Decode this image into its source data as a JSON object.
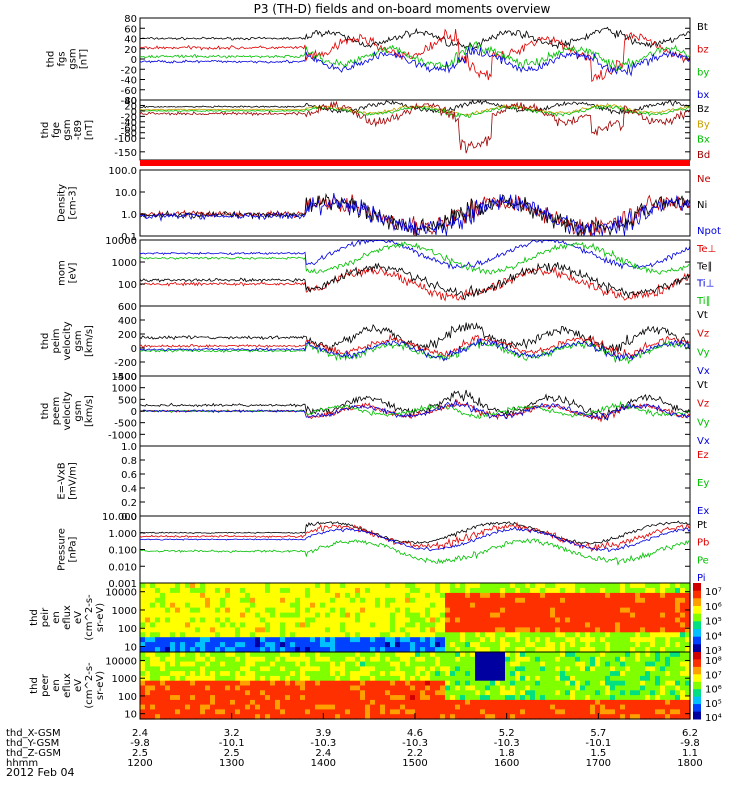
{
  "title": "P3 (TH-D) fields and on-board moments overview",
  "date_label": "2012 Feb 04",
  "chart_data": [
    {
      "id": "fgs",
      "type": "line",
      "ylabel": [
        "thd",
        "fgs",
        "gsm",
        "[nT]"
      ],
      "ylim": [
        -80,
        80
      ],
      "yticks": [
        80,
        60,
        40,
        20,
        0,
        -20,
        -40,
        -60,
        -80
      ],
      "series": [
        {
          "name": "Bt",
          "color": "#000000",
          "base": 40,
          "amp": 8
        },
        {
          "name": "bz",
          "color": "#e00000",
          "base": 22,
          "amp": 12
        },
        {
          "name": "by",
          "color": "#00c000",
          "base": 5,
          "amp": 10
        },
        {
          "name": "bx",
          "color": "#0000e0",
          "base": -5,
          "amp": 10
        }
      ]
    },
    {
      "id": "fge",
      "type": "line",
      "ylabel": [
        "thd",
        "fge",
        "gsm",
        "-t89",
        "[nT]"
      ],
      "ylim": [
        -180,
        40
      ],
      "yticks": [
        40,
        20,
        0,
        -20,
        -40,
        -60,
        -80,
        -100,
        -150
      ],
      "series": [
        {
          "name": "Bz",
          "color": "#000000",
          "base": 15,
          "amp": 10
        },
        {
          "name": "By",
          "color": "#c8a000",
          "base": 5,
          "amp": 8
        },
        {
          "name": "Bx",
          "color": "#00c000",
          "base": 0,
          "amp": 8
        },
        {
          "name": "Bd",
          "color": "#a00000",
          "base": -10,
          "amp": 20
        }
      ]
    },
    {
      "id": "density",
      "type": "line",
      "log": true,
      "ylabel": [
        "Density",
        "[cm-3]"
      ],
      "ylim": [
        0.1,
        100
      ],
      "yticks": [
        100.0,
        10.0,
        1.0,
        0.1
      ],
      "ytick_labels": [
        "100.0",
        "10.0",
        "1.0",
        "0.1"
      ],
      "series": [
        {
          "name": "Ne",
          "color": "#c00000",
          "base": 1.0,
          "amp": 1.2
        },
        {
          "name": "Ni",
          "color": "#000000",
          "base": 0.9,
          "amp": 1.2
        },
        {
          "name": "Npot",
          "color": "#0000e0",
          "base": 0.8,
          "amp": 1.2
        }
      ]
    },
    {
      "id": "temp",
      "type": "line",
      "log": true,
      "ylabel": [
        "mom",
        "[eV]"
      ],
      "ylim": [
        10,
        10000
      ],
      "yticks": [
        10000,
        1000,
        100
      ],
      "ytick_labels": [
        "10000",
        "1000",
        "100"
      ],
      "series": [
        {
          "name": "Te⊥",
          "color": "#e00000",
          "base": 100,
          "amp": 0.6
        },
        {
          "name": "Te∥",
          "color": "#000000",
          "base": 150,
          "amp": 0.6
        },
        {
          "name": "Ti⊥",
          "color": "#0000e0",
          "base": 2500,
          "amp": 0.4
        },
        {
          "name": "Ti∥",
          "color": "#00c000",
          "base": 1500,
          "amp": 0.4
        }
      ]
    },
    {
      "id": "peim",
      "type": "line",
      "ylabel": [
        "thd",
        "peim",
        "velocity",
        "gsm",
        "[km/s]"
      ],
      "ylim": [
        -400,
        600
      ],
      "yticks": [
        600,
        400,
        200,
        0,
        -200,
        -400
      ],
      "series": [
        {
          "name": "Vt",
          "color": "#000000",
          "base": 150,
          "amp": 80
        },
        {
          "name": "Vz",
          "color": "#e00000",
          "base": 30,
          "amp": 60
        },
        {
          "name": "Vy",
          "color": "#00c000",
          "base": -40,
          "amp": 60
        },
        {
          "name": "Vx",
          "color": "#0000e0",
          "base": -20,
          "amp": 60
        }
      ]
    },
    {
      "id": "peem",
      "type": "line",
      "ylabel": [
        "thd",
        "peem",
        "velocity",
        "gsm",
        "[km/s]"
      ],
      "ylim": [
        -1500,
        1500
      ],
      "yticks": [
        1500,
        1000,
        500,
        0,
        -500,
        -1000
      ],
      "series": [
        {
          "name": "Vt",
          "color": "#000000",
          "base": 250,
          "amp": 200
        },
        {
          "name": "Vz",
          "color": "#e00000",
          "base": 0,
          "amp": 150
        },
        {
          "name": "Vy",
          "color": "#00c000",
          "base": 0,
          "amp": 120
        },
        {
          "name": "Vx",
          "color": "#0000e0",
          "base": 0,
          "amp": 150
        }
      ]
    },
    {
      "id": "efield",
      "type": "line",
      "ylabel": [
        "E=-VxB",
        "[mV/m]"
      ],
      "ylim": [
        0.0,
        1.0
      ],
      "yticks": [
        1.0,
        0.8,
        0.6,
        0.4,
        0.2,
        0.0
      ],
      "ytick_labels": [
        "1.0",
        "0.8",
        "0.6",
        "0.4",
        "0.2",
        "0.0"
      ],
      "series": [
        {
          "name": "Ez",
          "color": "#e00000",
          "base": null,
          "amp": 0
        },
        {
          "name": "Ey",
          "color": "#00c000",
          "base": null,
          "amp": 0
        },
        {
          "name": "Ex",
          "color": "#0000e0",
          "base": null,
          "amp": 0
        }
      ]
    },
    {
      "id": "pressure",
      "type": "line",
      "log": true,
      "ylabel": [
        "Pressure",
        "[nPa]"
      ],
      "ylim": [
        0.001,
        10
      ],
      "yticks": [
        10.0,
        1.0,
        0.1,
        0.01,
        0.001
      ],
      "ytick_labels": [
        "10.000",
        "1.000",
        "0.100",
        "0.010",
        "0.001"
      ],
      "series": [
        {
          "name": "Pt",
          "color": "#000000",
          "base": 1.0,
          "amp": 0.3
        },
        {
          "name": "Pb",
          "color": "#e00000",
          "base": 0.6,
          "amp": 0.5
        },
        {
          "name": "Pe",
          "color": "#00c000",
          "base": 0.08,
          "amp": 0.5
        },
        {
          "name": "Pi",
          "color": "#0000e0",
          "base": 0.4,
          "amp": 0.3
        }
      ]
    },
    {
      "id": "peir",
      "type": "heatmap",
      "ylabel": [
        "thd",
        "peir",
        "en",
        "eflux",
        "eV",
        "(cm^2-s-",
        "sr-eV)"
      ],
      "ylim": [
        5,
        30000
      ],
      "yticks": [
        10000,
        1000,
        100,
        10
      ],
      "ytick_labels": [
        "10000",
        "1000",
        "100",
        "10"
      ],
      "colorbar_labels": [
        "10⁷",
        "10⁶",
        "10⁵",
        "10⁴",
        "10³"
      ]
    },
    {
      "id": "peer",
      "type": "heatmap",
      "ylabel": [
        "thd",
        "peer",
        "en",
        "eflux",
        "eV",
        "(cm^2-s-",
        "sr-eV)"
      ],
      "ylim": [
        5,
        30000
      ],
      "yticks": [
        10000,
        1000,
        100,
        10
      ],
      "ytick_labels": [
        "10000",
        "1000",
        "100",
        "10"
      ],
      "colorbar_labels": [
        "10⁸",
        "10⁷",
        "10⁶",
        "10⁵",
        "10⁴"
      ]
    }
  ],
  "x_axis": {
    "range": [
      1200,
      1800
    ],
    "rows": [
      {
        "label": "thd_X-GSM",
        "values": [
          "2.4",
          "3.2",
          "3.9",
          "4.6",
          "5.2",
          "5.7",
          "6.2"
        ]
      },
      {
        "label": "thd_Y-GSM",
        "values": [
          "-9.8",
          "-10.1",
          "-10.3",
          "-10.3",
          "-10.3",
          "-10.1",
          "-9.8"
        ]
      },
      {
        "label": "thd_Z-GSM",
        "values": [
          "2.5",
          "2.5",
          "2.4",
          "2.2",
          "1.8",
          "1.5",
          "1.1"
        ]
      },
      {
        "label": "hhmm",
        "values": [
          "1200",
          "1300",
          "1400",
          "1500",
          "1600",
          "1700",
          "1800"
        ]
      }
    ]
  }
}
